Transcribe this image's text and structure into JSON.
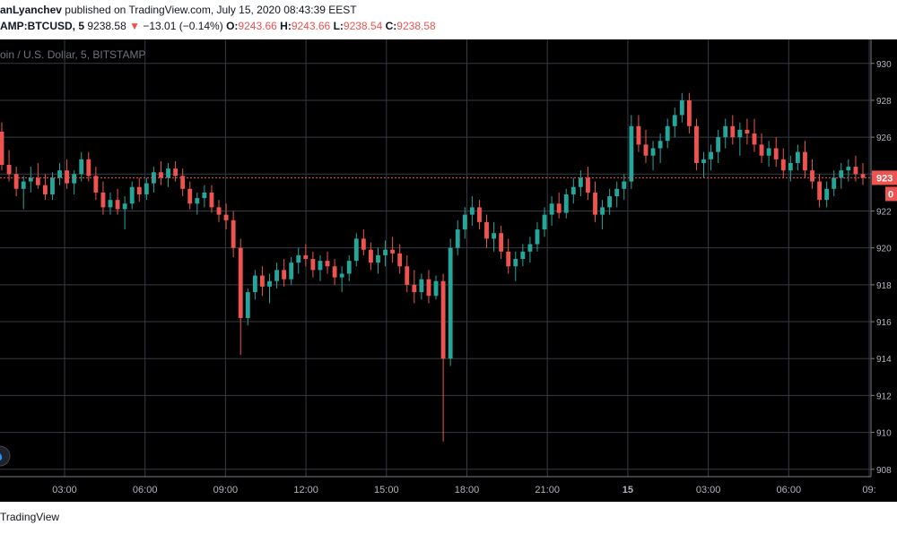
{
  "header": {
    "author": "anLyanchev",
    "published_text": "published on TradingView.com, July 15, 2020 08:43:39 EEST",
    "symbol": "AMP:BTCUSD, 5",
    "last": "9238.58",
    "change_arrow": "▼",
    "change": "−13.01 (−0.14%)",
    "o_label": "O:",
    "o_value": "9243.66",
    "h_label": "H:",
    "h_value": "9243.66",
    "l_label": "L:",
    "l_value": "9238.54",
    "c_label": "C:",
    "c_value": "9238.58"
  },
  "chart_title": "oin / U.S. Dollar, 5, BITSTAMP",
  "footer": {
    "brand": "TradingView"
  },
  "colors": {
    "up": "#26a69a",
    "down": "#ef5350",
    "grid": "#363a45",
    "price_line": "#ef5350"
  },
  "chart_data": {
    "type": "candlestick",
    "interval_minutes": 5,
    "x_tick_labels": [
      "03:00",
      "06:00",
      "09:00",
      "12:00",
      "15:00",
      "18:00",
      "21:00",
      "15",
      "03:00",
      "06:00",
      "09:"
    ],
    "y_tick_labels": [
      "930",
      "928",
      "926",
      "924",
      "922",
      "920",
      "918",
      "916",
      "914",
      "912",
      "910",
      "908"
    ],
    "y_ticks": [
      9300,
      9280,
      9260,
      9240,
      9220,
      9200,
      9180,
      9160,
      9140,
      9120,
      9100,
      9080
    ],
    "ylim": [
      9076,
      9313
    ],
    "current_price_label": "923",
    "countdown_label": "0",
    "candles": [
      [
        9263,
        9268,
        9242,
        9245
      ],
      [
        9245,
        9253,
        9236,
        9240
      ],
      [
        9240,
        9244,
        9228,
        9232
      ],
      [
        9232,
        9239,
        9221,
        9236
      ],
      [
        9236,
        9244,
        9230,
        9238
      ],
      [
        9238,
        9246,
        9232,
        9234
      ],
      [
        9234,
        9240,
        9226,
        9229
      ],
      [
        9229,
        9241,
        9226,
        9238
      ],
      [
        9238,
        9246,
        9234,
        9242
      ],
      [
        9242,
        9248,
        9232,
        9235
      ],
      [
        9235,
        9242,
        9229,
        9240
      ],
      [
        9240,
        9252,
        9236,
        9248
      ],
      [
        9248,
        9252,
        9236,
        9239
      ],
      [
        9239,
        9244,
        9226,
        9230
      ],
      [
        9230,
        9236,
        9218,
        9222
      ],
      [
        9222,
        9230,
        9218,
        9226
      ],
      [
        9226,
        9232,
        9218,
        9221
      ],
      [
        9221,
        9228,
        9210,
        9224
      ],
      [
        9224,
        9236,
        9221,
        9233
      ],
      [
        9233,
        9238,
        9225,
        9229
      ],
      [
        9229,
        9238,
        9226,
        9235
      ],
      [
        9235,
        9244,
        9230,
        9241
      ],
      [
        9241,
        9247,
        9234,
        9238
      ],
      [
        9238,
        9246,
        9233,
        9243
      ],
      [
        9243,
        9247,
        9236,
        9239
      ],
      [
        9239,
        9243,
        9228,
        9232
      ],
      [
        9232,
        9236,
        9221,
        9224
      ],
      [
        9224,
        9230,
        9218,
        9227
      ],
      [
        9227,
        9234,
        9222,
        9230
      ],
      [
        9230,
        9234,
        9219,
        9222
      ],
      [
        9222,
        9226,
        9214,
        9218
      ],
      [
        9218,
        9224,
        9210,
        9215
      ],
      [
        9215,
        9220,
        9195,
        9200
      ],
      [
        9200,
        9205,
        9142,
        9162
      ],
      [
        9162,
        9178,
        9158,
        9176
      ],
      [
        9176,
        9188,
        9172,
        9185
      ],
      [
        9185,
        9190,
        9174,
        9179
      ],
      [
        9179,
        9186,
        9170,
        9182
      ],
      [
        9182,
        9192,
        9178,
        9188
      ],
      [
        9188,
        9194,
        9179,
        9183
      ],
      [
        9183,
        9195,
        9180,
        9192
      ],
      [
        9192,
        9200,
        9186,
        9196
      ],
      [
        9196,
        9202,
        9190,
        9194
      ],
      [
        9194,
        9198,
        9184,
        9188
      ],
      [
        9188,
        9196,
        9182,
        9193
      ],
      [
        9193,
        9198,
        9186,
        9190
      ],
      [
        9190,
        9194,
        9180,
        9184
      ],
      [
        9184,
        9190,
        9176,
        9186
      ],
      [
        9186,
        9196,
        9182,
        9193
      ],
      [
        9193,
        9208,
        9190,
        9205
      ],
      [
        9205,
        9210,
        9196,
        9199
      ],
      [
        9199,
        9203,
        9188,
        9192
      ],
      [
        9192,
        9200,
        9186,
        9196
      ],
      [
        9196,
        9204,
        9190,
        9199
      ],
      [
        9199,
        9206,
        9192,
        9197
      ],
      [
        9197,
        9202,
        9186,
        9190
      ],
      [
        9190,
        9196,
        9176,
        9180
      ],
      [
        9180,
        9188,
        9170,
        9176
      ],
      [
        9176,
        9186,
        9172,
        9183
      ],
      [
        9183,
        9188,
        9170,
        9174
      ],
      [
        9174,
        9185,
        9172,
        9182
      ],
      [
        9182,
        9186,
        9095,
        9140
      ],
      [
        9140,
        9205,
        9136,
        9200
      ],
      [
        9200,
        9215,
        9196,
        9210
      ],
      [
        9210,
        9222,
        9205,
        9218
      ],
      [
        9218,
        9228,
        9212,
        9222
      ],
      [
        9222,
        9226,
        9210,
        9214
      ],
      [
        9214,
        9218,
        9200,
        9205
      ],
      [
        9205,
        9214,
        9198,
        9208
      ],
      [
        9208,
        9212,
        9194,
        9198
      ],
      [
        9198,
        9205,
        9186,
        9190
      ],
      [
        9190,
        9198,
        9182,
        9194
      ],
      [
        9194,
        9202,
        9190,
        9198
      ],
      [
        9198,
        9206,
        9192,
        9202
      ],
      [
        9202,
        9214,
        9198,
        9210
      ],
      [
        9210,
        9222,
        9206,
        9218
      ],
      [
        9218,
        9228,
        9212,
        9224
      ],
      [
        9224,
        9230,
        9216,
        9219
      ],
      [
        9219,
        9232,
        9216,
        9229
      ],
      [
        9229,
        9238,
        9224,
        9233
      ],
      [
        9233,
        9242,
        9228,
        9238
      ],
      [
        9238,
        9244,
        9226,
        9230
      ],
      [
        9230,
        9236,
        9214,
        9218
      ],
      [
        9218,
        9226,
        9210,
        9222
      ],
      [
        9222,
        9232,
        9218,
        9228
      ],
      [
        9228,
        9236,
        9222,
        9232
      ],
      [
        9232,
        9240,
        9226,
        9236
      ],
      [
        9236,
        9272,
        9232,
        9266
      ],
      [
        9266,
        9272,
        9252,
        9256
      ],
      [
        9256,
        9264,
        9246,
        9250
      ],
      [
        9250,
        9258,
        9242,
        9254
      ],
      [
        9254,
        9262,
        9246,
        9258
      ],
      [
        9258,
        9270,
        9254,
        9266
      ],
      [
        9266,
        9276,
        9260,
        9272
      ],
      [
        9272,
        9284,
        9268,
        9280
      ],
      [
        9280,
        9284,
        9262,
        9266
      ],
      [
        9266,
        9270,
        9242,
        9246
      ],
      [
        9246,
        9252,
        9238,
        9248
      ],
      [
        9248,
        9256,
        9242,
        9252
      ],
      [
        9252,
        9264,
        9246,
        9260
      ],
      [
        9260,
        9270,
        9254,
        9266
      ],
      [
        9266,
        9272,
        9256,
        9260
      ],
      [
        9260,
        9268,
        9250,
        9264
      ],
      [
        9264,
        9270,
        9256,
        9262
      ],
      [
        9262,
        9270,
        9252,
        9256
      ],
      [
        9256,
        9262,
        9246,
        9250
      ],
      [
        9250,
        9258,
        9244,
        9254
      ],
      [
        9254,
        9260,
        9244,
        9248
      ],
      [
        9248,
        9254,
        9238,
        9242
      ],
      [
        9242,
        9250,
        9236,
        9246
      ],
      [
        9246,
        9256,
        9242,
        9252
      ],
      [
        9252,
        9258,
        9238,
        9242
      ],
      [
        9242,
        9248,
        9232,
        9236
      ],
      [
        9236,
        9240,
        9222,
        9226
      ],
      [
        9226,
        9236,
        9222,
        9232
      ],
      [
        9232,
        9242,
        9228,
        9238
      ],
      [
        9238,
        9246,
        9232,
        9242
      ],
      [
        9242,
        9248,
        9236,
        9244
      ],
      [
        9244,
        9250,
        9236,
        9240
      ],
      [
        9240,
        9246,
        9234,
        9238
      ]
    ]
  }
}
